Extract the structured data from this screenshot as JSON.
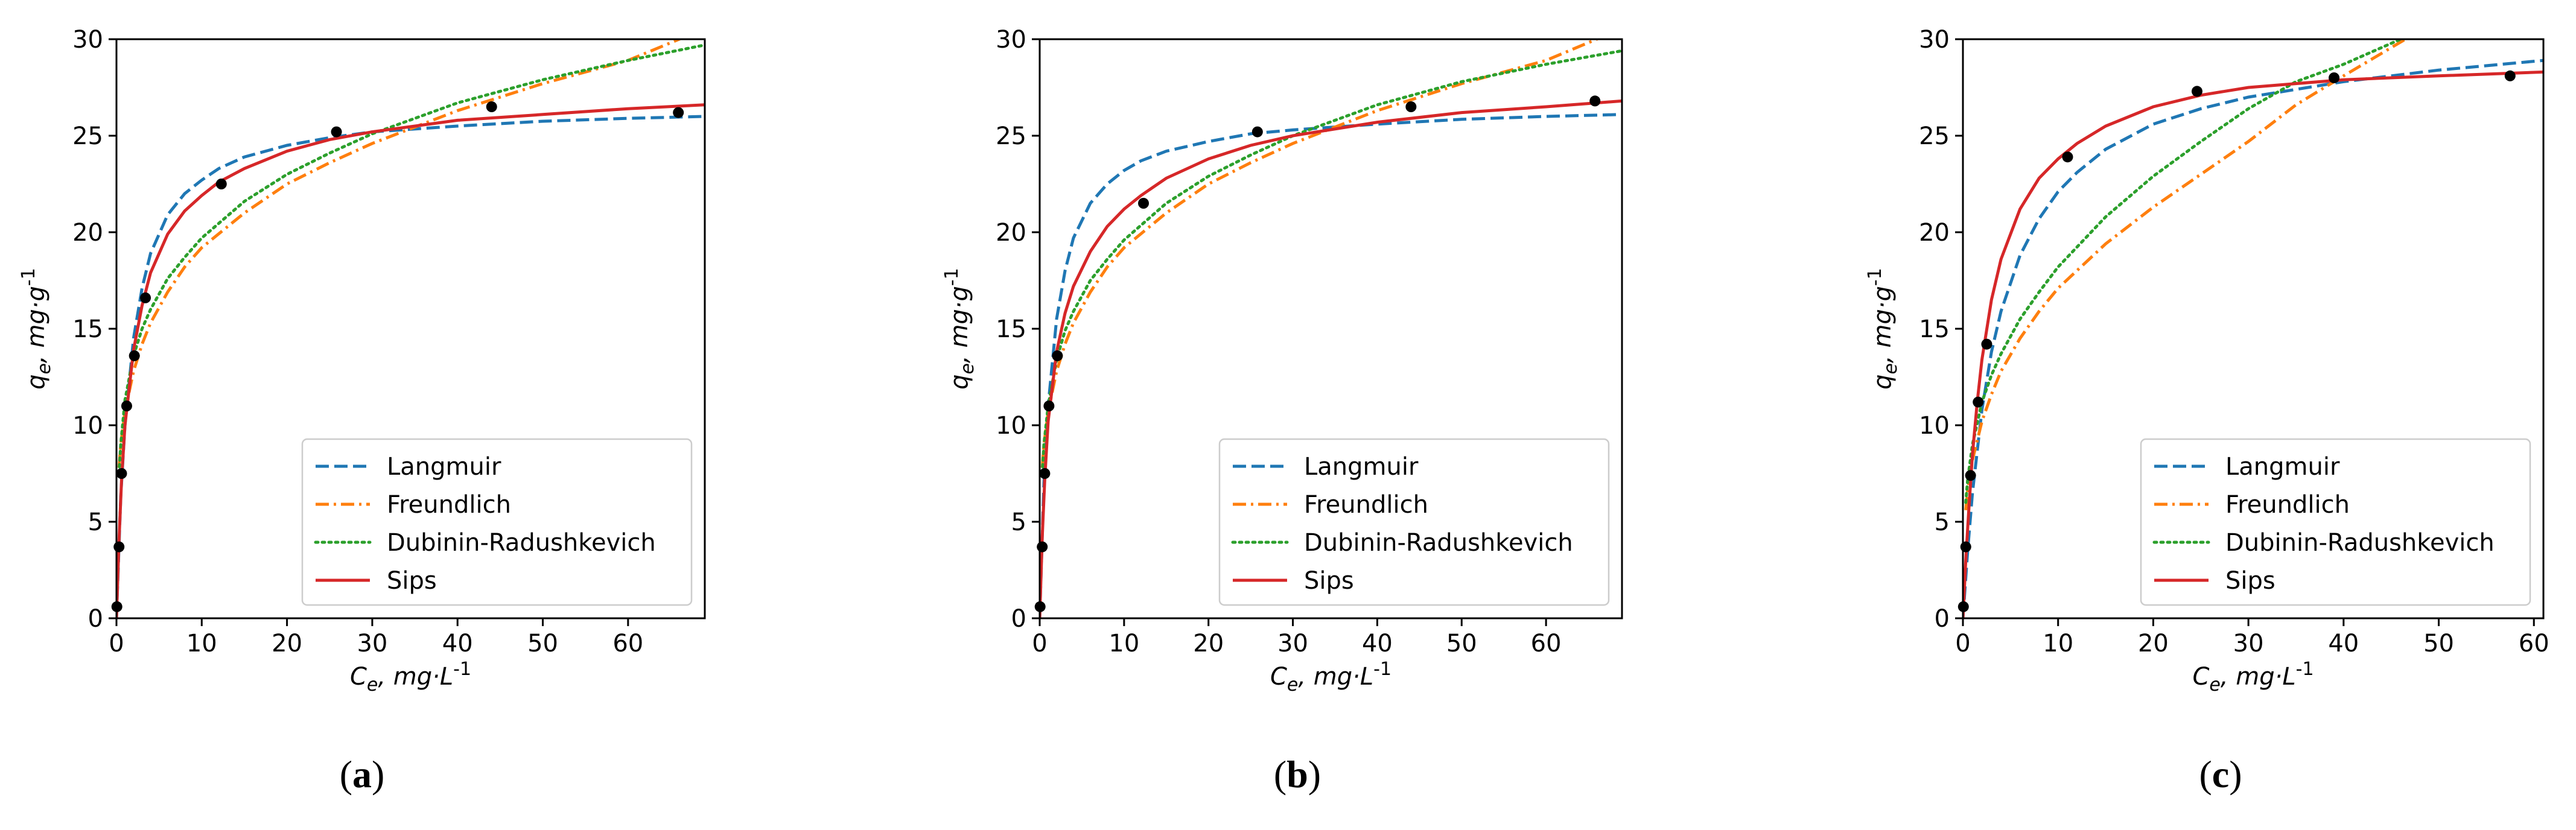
{
  "figure": {
    "panel_labels": [
      "a",
      "b",
      "c"
    ]
  },
  "chart_data": [
    {
      "type": "line",
      "panel": "a",
      "xlabel": "C_e, mg·L^-1",
      "ylabel": "q_e, mg·g^-1",
      "xlim": [
        0,
        69
      ],
      "ylim": [
        0,
        30
      ],
      "xticks": [
        0,
        10,
        20,
        30,
        40,
        50,
        60
      ],
      "yticks": [
        0,
        5,
        10,
        15,
        20,
        25,
        30
      ],
      "grid": false,
      "legend_position": "lower-right",
      "legend": [
        "Langmuir",
        "Freundlich",
        "Dubinin-Radushkevich",
        "Sips"
      ],
      "points": [
        {
          "x": 0.05,
          "y": 0.6
        },
        {
          "x": 0.3,
          "y": 3.7
        },
        {
          "x": 0.6,
          "y": 7.5
        },
        {
          "x": 1.2,
          "y": 11.0
        },
        {
          "x": 2.1,
          "y": 13.6
        },
        {
          "x": 3.4,
          "y": 16.6
        },
        {
          "x": 12.3,
          "y": 22.5
        },
        {
          "x": 25.8,
          "y": 25.2
        },
        {
          "x": 44.0,
          "y": 26.5
        },
        {
          "x": 65.9,
          "y": 26.2
        }
      ],
      "series": [
        {
          "name": "Langmuir",
          "color": "#1f77b4",
          "dash": "dashed",
          "x": [
            0,
            0.5,
            1,
            2,
            3,
            4,
            6,
            8,
            10,
            12,
            15,
            20,
            25,
            30,
            40,
            50,
            60,
            69
          ],
          "y": [
            0,
            6.3,
            10.0,
            14.5,
            17.1,
            18.9,
            20.9,
            22.0,
            22.7,
            23.3,
            23.9,
            24.5,
            24.9,
            25.2,
            25.5,
            25.75,
            25.9,
            26.0
          ]
        },
        {
          "name": "Freundlich",
          "color": "#ff7f0e",
          "dash": "dashdot",
          "x": [
            0.3,
            0.5,
            1,
            2,
            3,
            4,
            6,
            8,
            10,
            15,
            20,
            25,
            30,
            40,
            50,
            60,
            66,
            69
          ],
          "y": [
            7.8,
            9.0,
            10.7,
            12.8,
            14.2,
            15.3,
            16.9,
            18.2,
            19.2,
            21.0,
            22.5,
            23.6,
            24.6,
            26.3,
            27.7,
            28.9,
            30.0,
            30.6
          ]
        },
        {
          "name": "Dubinin-Radushkevich",
          "color": "#2ca02c",
          "dash": "dotted",
          "x": [
            0.3,
            0.5,
            1,
            2,
            3,
            4,
            6,
            8,
            10,
            15,
            20,
            25,
            30,
            40,
            50,
            60,
            69
          ],
          "y": [
            7.5,
            9.0,
            11.3,
            13.6,
            15.0,
            16.0,
            17.6,
            18.7,
            19.7,
            21.6,
            23.0,
            24.1,
            25.1,
            26.7,
            27.9,
            28.9,
            29.7
          ]
        },
        {
          "name": "Sips",
          "color": "#d62728",
          "dash": "solid",
          "x": [
            0,
            0.3,
            0.6,
            1,
            2,
            3,
            4,
            6,
            8,
            10,
            12,
            15,
            20,
            25,
            30,
            40,
            50,
            60,
            69
          ],
          "y": [
            0,
            4.0,
            7.2,
            10.0,
            13.9,
            16.2,
            17.9,
            19.9,
            21.1,
            21.9,
            22.6,
            23.3,
            24.2,
            24.8,
            25.2,
            25.8,
            26.1,
            26.4,
            26.6
          ]
        }
      ]
    },
    {
      "type": "line",
      "panel": "b",
      "xlabel": "C_e, mg·L^-1",
      "ylabel": "q_e, mg·g^-1",
      "xlim": [
        0,
        69
      ],
      "ylim": [
        0,
        30
      ],
      "xticks": [
        0,
        10,
        20,
        30,
        40,
        50,
        60
      ],
      "yticks": [
        0,
        5,
        10,
        15,
        20,
        25,
        30
      ],
      "grid": false,
      "legend_position": "lower-right",
      "legend": [
        "Langmuir",
        "Freundlich",
        "Dubinin-Radushkevich",
        "Sips"
      ],
      "points": [
        {
          "x": 0.05,
          "y": 0.6
        },
        {
          "x": 0.3,
          "y": 3.7
        },
        {
          "x": 0.6,
          "y": 7.5
        },
        {
          "x": 1.1,
          "y": 11.0
        },
        {
          "x": 2.1,
          "y": 13.6
        },
        {
          "x": 12.3,
          "y": 21.5
        },
        {
          "x": 25.8,
          "y": 25.2
        },
        {
          "x": 44.0,
          "y": 26.5
        },
        {
          "x": 65.8,
          "y": 26.8
        }
      ],
      "series": [
        {
          "name": "Langmuir",
          "color": "#1f77b4",
          "dash": "dashed",
          "x": [
            0,
            0.5,
            1,
            2,
            3,
            4,
            6,
            8,
            10,
            12,
            15,
            20,
            25,
            30,
            40,
            50,
            60,
            69
          ],
          "y": [
            0,
            7.0,
            11.0,
            15.5,
            18.0,
            19.7,
            21.5,
            22.5,
            23.2,
            23.7,
            24.2,
            24.7,
            25.1,
            25.3,
            25.6,
            25.85,
            26.0,
            26.1
          ]
        },
        {
          "name": "Freundlich",
          "color": "#ff7f0e",
          "dash": "dashdot",
          "x": [
            0.3,
            0.5,
            1,
            2,
            3,
            4,
            6,
            8,
            10,
            15,
            20,
            25,
            30,
            40,
            50,
            60,
            66,
            69
          ],
          "y": [
            7.8,
            9.0,
            10.7,
            12.8,
            14.2,
            15.3,
            16.9,
            18.2,
            19.2,
            21.0,
            22.5,
            23.6,
            24.6,
            26.3,
            27.7,
            28.9,
            30.0,
            30.6
          ]
        },
        {
          "name": "Dubinin-Radushkevich",
          "color": "#2ca02c",
          "dash": "dotted",
          "x": [
            0.3,
            0.5,
            1,
            2,
            3,
            4,
            6,
            8,
            10,
            15,
            20,
            25,
            30,
            40,
            50,
            60,
            69
          ],
          "y": [
            7.5,
            9.0,
            11.0,
            13.4,
            14.9,
            15.9,
            17.5,
            18.6,
            19.6,
            21.5,
            22.9,
            24.0,
            25.0,
            26.6,
            27.8,
            28.7,
            29.4
          ]
        },
        {
          "name": "Sips",
          "color": "#d62728",
          "dash": "solid",
          "x": [
            0,
            0.3,
            0.6,
            1,
            2,
            3,
            4,
            6,
            8,
            10,
            12,
            15,
            20,
            25,
            30,
            40,
            50,
            60,
            69
          ],
          "y": [
            0,
            4.2,
            7.2,
            10.2,
            13.8,
            15.8,
            17.2,
            19.0,
            20.3,
            21.2,
            21.9,
            22.8,
            23.8,
            24.5,
            25.0,
            25.7,
            26.2,
            26.5,
            26.8
          ]
        }
      ]
    },
    {
      "type": "line",
      "panel": "c",
      "xlabel": "C_e, mg·L^-1",
      "ylabel": "q_e, mg·g^-1",
      "xlim": [
        0,
        61
      ],
      "ylim": [
        0,
        30
      ],
      "xticks": [
        0,
        10,
        20,
        30,
        40,
        50,
        60
      ],
      "yticks": [
        0,
        5,
        10,
        15,
        20,
        25,
        30
      ],
      "grid": false,
      "legend_position": "lower-right",
      "legend": [
        "Langmuir",
        "Freundlich",
        "Dubinin-Radushkevich",
        "Sips"
      ],
      "points": [
        {
          "x": 0.05,
          "y": 0.6
        },
        {
          "x": 0.3,
          "y": 3.7
        },
        {
          "x": 0.8,
          "y": 7.4
        },
        {
          "x": 1.6,
          "y": 11.2
        },
        {
          "x": 2.5,
          "y": 14.2
        },
        {
          "x": 11.0,
          "y": 23.9
        },
        {
          "x": 24.6,
          "y": 27.3
        },
        {
          "x": 39.0,
          "y": 28.0
        },
        {
          "x": 57.5,
          "y": 28.1
        }
      ],
      "series": [
        {
          "name": "Langmuir",
          "color": "#1f77b4",
          "dash": "dashed",
          "x": [
            0,
            0.5,
            1,
            2,
            3,
            4,
            6,
            8,
            10,
            12,
            15,
            20,
            25,
            30,
            40,
            50,
            61
          ],
          "y": [
            0,
            3.5,
            6.5,
            10.8,
            13.8,
            15.9,
            18.8,
            20.7,
            22.1,
            23.1,
            24.3,
            25.6,
            26.4,
            27.0,
            27.8,
            28.4,
            28.9
          ]
        },
        {
          "name": "Freundlich",
          "color": "#ff7f0e",
          "dash": "dashdot",
          "x": [
            0.3,
            0.5,
            1,
            2,
            3,
            4,
            6,
            8,
            10,
            15,
            20,
            25,
            30,
            35,
            40,
            46.5
          ],
          "y": [
            5.6,
            6.6,
            8.2,
            10.2,
            11.6,
            12.8,
            14.5,
            15.9,
            17.1,
            19.4,
            21.3,
            23.0,
            24.7,
            26.6,
            28.1,
            30.0
          ]
        },
        {
          "name": "Dubinin-Radushkevich",
          "color": "#2ca02c",
          "dash": "dotted",
          "x": [
            0.3,
            0.5,
            1,
            2,
            3,
            4,
            6,
            8,
            10,
            15,
            20,
            25,
            30,
            35,
            40,
            46
          ],
          "y": [
            6.0,
            7.2,
            9.0,
            11.2,
            12.6,
            13.7,
            15.5,
            16.9,
            18.2,
            20.8,
            22.9,
            24.7,
            26.4,
            27.8,
            28.7,
            30.0
          ]
        },
        {
          "name": "Sips",
          "color": "#d62728",
          "dash": "solid",
          "x": [
            0,
            0.3,
            0.6,
            1,
            1.5,
            2,
            3,
            4,
            6,
            8,
            10,
            12,
            15,
            20,
            25,
            30,
            40,
            50,
            61
          ],
          "y": [
            0,
            3.0,
            5.5,
            8.5,
            11.2,
            13.4,
            16.5,
            18.6,
            21.2,
            22.8,
            23.8,
            24.6,
            25.5,
            26.5,
            27.1,
            27.5,
            27.9,
            28.1,
            28.3
          ]
        }
      ]
    }
  ]
}
